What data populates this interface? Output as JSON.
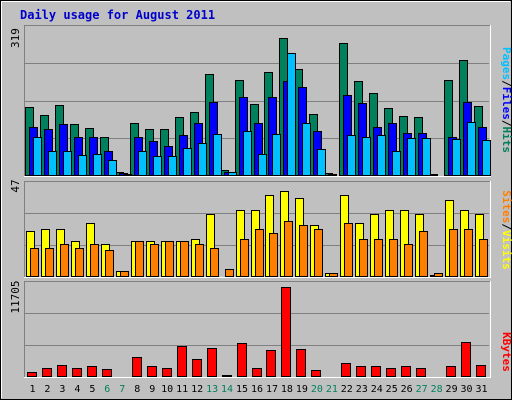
{
  "colors": {
    "background": "#c0c0c0",
    "frame_light": "#ffffff",
    "frame_dark": "#808080",
    "gridline": "#808080",
    "hits": "#00805c",
    "files": "#0000ff",
    "pages": "#00c0ff",
    "visits": "#ffff00",
    "sites": "#ff8000",
    "kbytes": "#ff0000",
    "weekday": "#000000",
    "weekend": "#00805c",
    "title": "#0000cc"
  },
  "chart_data": [
    {
      "type": "bar",
      "title": "Daily usage for August 2011",
      "categories": [
        "1",
        "2",
        "3",
        "4",
        "5",
        "6",
        "7",
        "8",
        "9",
        "10",
        "11",
        "12",
        "13",
        "14",
        "15",
        "16",
        "17",
        "18",
        "19",
        "20",
        "21",
        "22",
        "23",
        "24",
        "25",
        "26",
        "27",
        "28",
        "29",
        "30",
        "31"
      ],
      "weekend_days": [
        "6",
        "7",
        "13",
        "14",
        "20",
        "21",
        "27",
        "28"
      ],
      "ymax_label": "319",
      "ylim": [
        0,
        319
      ],
      "series": [
        {
          "name": "Hits",
          "color": "#00805c",
          "values": [
            151,
            134,
            157,
            114,
            106,
            86,
            9,
            116,
            104,
            104,
            129,
            140,
            225,
            14,
            211,
            158,
            228,
            304,
            236,
            136,
            6,
            293,
            210,
            182,
            149,
            133,
            130,
            4,
            211,
            256,
            155
          ]
        },
        {
          "name": "Files",
          "color": "#0000ff",
          "values": [
            108,
            104,
            114,
            86,
            86,
            55,
            6,
            86,
            78,
            66,
            90,
            117,
            162,
            9,
            174,
            117,
            174,
            208,
            196,
            99,
            4,
            178,
            160,
            108,
            117,
            94,
            94,
            2,
            86,
            162,
            108
          ]
        },
        {
          "name": "Pages",
          "color": "#00c0ff",
          "values": [
            86,
            55,
            55,
            47,
            48,
            36,
            4,
            56,
            44,
            44,
            62,
            72,
            92,
            8,
            98,
            48,
            93,
            271,
            116,
            60,
            3,
            90,
            86,
            90,
            56,
            84,
            84,
            2,
            82,
            118,
            79
          ]
        }
      ],
      "side_label": [
        "Pages",
        "Files",
        "Hits"
      ]
    },
    {
      "type": "bar",
      "categories": [
        "1",
        "2",
        "3",
        "4",
        "5",
        "6",
        "7",
        "8",
        "9",
        "10",
        "11",
        "12",
        "13",
        "14",
        "15",
        "16",
        "17",
        "18",
        "19",
        "20",
        "21",
        "22",
        "23",
        "24",
        "25",
        "26",
        "27",
        "28",
        "29",
        "30",
        "31"
      ],
      "ymax_label": "47",
      "ylim": [
        0,
        47
      ],
      "series": [
        {
          "name": "Visits",
          "color": "#ffff00",
          "values": [
            24,
            25,
            25,
            19,
            28,
            17,
            3,
            19,
            19,
            19,
            19,
            20,
            33,
            0,
            35,
            35,
            43,
            45,
            41,
            27,
            2,
            43,
            28,
            33,
            35,
            35,
            33,
            1,
            40,
            35,
            33
          ]
        },
        {
          "name": "Sites",
          "color": "#ff8000",
          "values": [
            15,
            15,
            17,
            15,
            17,
            14,
            3,
            19,
            17,
            19,
            19,
            17,
            15,
            4,
            20,
            25,
            23,
            29,
            27,
            25,
            2,
            28,
            20,
            20,
            20,
            17,
            24,
            2,
            25,
            25,
            20
          ]
        }
      ],
      "side_label": [
        "Sites",
        "Visits"
      ]
    },
    {
      "type": "bar",
      "categories": [
        "1",
        "2",
        "3",
        "4",
        "5",
        "6",
        "7",
        "8",
        "9",
        "10",
        "11",
        "12",
        "13",
        "14",
        "15",
        "16",
        "17",
        "18",
        "19",
        "20",
        "21",
        "22",
        "23",
        "24",
        "25",
        "26",
        "27",
        "28",
        "29",
        "30",
        "31"
      ],
      "ymax_label": "11705",
      "ylim": [
        0,
        11705
      ],
      "series": [
        {
          "name": "KBytes",
          "color": "#ff0000",
          "values": [
            600,
            1200,
            1600,
            1200,
            1400,
            1000,
            100,
            2600,
            1400,
            1200,
            4000,
            2400,
            3800,
            200,
            4400,
            1200,
            3500,
            11705,
            3600,
            900,
            100,
            1800,
            1400,
            1400,
            1200,
            1400,
            1200,
            100,
            1400,
            4600,
            1600
          ]
        }
      ],
      "side_label": [
        "KBytes"
      ]
    }
  ]
}
